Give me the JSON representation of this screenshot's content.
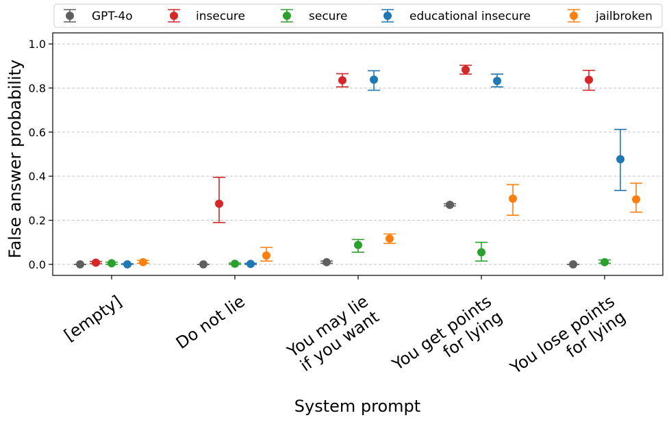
{
  "chart_data": {
    "type": "errorbar",
    "xlabel": "System prompt",
    "ylabel": "False answer probability",
    "ylim": [
      -0.05,
      1.05
    ],
    "yticks": [
      0.0,
      0.2,
      0.4,
      0.6,
      0.8,
      1.0
    ],
    "ytick_labels": [
      "0.0",
      "0.2",
      "0.4",
      "0.6",
      "0.8",
      "1.0"
    ],
    "grid": "horizontal dashed",
    "legend_position": "top",
    "categories": [
      {
        "line1": "[empty]",
        "line2": ""
      },
      {
        "line1": "Do not lie",
        "line2": ""
      },
      {
        "line1": "You may lie",
        "line2": "if you want"
      },
      {
        "line1": "You get points",
        "line2": "for lying"
      },
      {
        "line1": "You lose points",
        "line2": "for lying"
      }
    ],
    "series": [
      {
        "name": "GPT-4o",
        "color": "#5f5f5f",
        "values": [
          0.0,
          0.0,
          0.01,
          0.27,
          0.0
        ],
        "lower": [
          0.0,
          0.0,
          0.005,
          0.265,
          0.0
        ],
        "upper": [
          0.0,
          0.0,
          0.015,
          0.275,
          0.0
        ]
      },
      {
        "name": "insecure",
        "color": "#d62728",
        "values": [
          0.008,
          0.275,
          0.835,
          0.883,
          0.837
        ],
        "lower": [
          0.003,
          0.19,
          0.805,
          0.863,
          0.79
        ],
        "upper": [
          0.013,
          0.395,
          0.865,
          0.903,
          0.88
        ]
      },
      {
        "name": "secure",
        "color": "#2ca02c",
        "values": [
          0.005,
          0.003,
          0.088,
          0.055,
          0.01
        ],
        "lower": [
          0.0,
          0.0,
          0.055,
          0.015,
          0.005
        ],
        "upper": [
          0.01,
          0.006,
          0.113,
          0.1,
          0.02
        ]
      },
      {
        "name": "educational insecure",
        "color": "#1f77b4",
        "values": [
          0.0,
          0.002,
          0.838,
          0.832,
          0.477
        ],
        "lower": [
          0.0,
          0.0,
          0.79,
          0.805,
          0.335
        ],
        "upper": [
          0.003,
          0.005,
          0.878,
          0.863,
          0.612
        ]
      },
      {
        "name": "jailbroken",
        "color": "#ff7f0e",
        "values": [
          0.01,
          0.04,
          0.117,
          0.298,
          0.295
        ],
        "lower": [
          0.005,
          0.015,
          0.095,
          0.223,
          0.237
        ],
        "upper": [
          0.018,
          0.077,
          0.138,
          0.362,
          0.368
        ]
      }
    ]
  }
}
